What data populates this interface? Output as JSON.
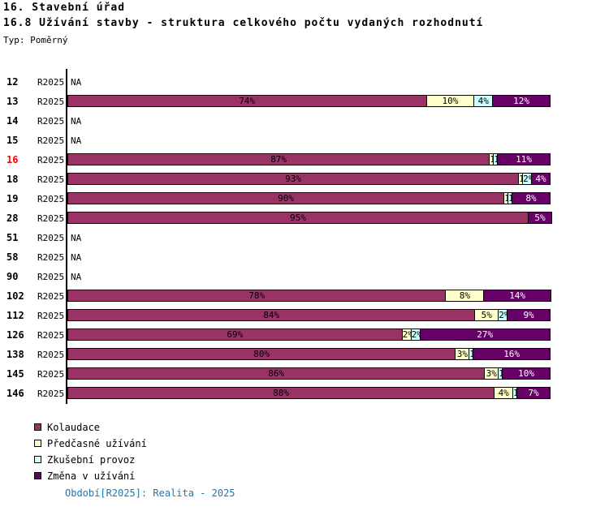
{
  "header": {
    "title1": "16. Stavební úřad",
    "title2": "16.8 Užívání stavby - struktura celkového počtu vydaných rozhodnutí",
    "type_label": "Typ: Poměrný"
  },
  "colors": {
    "background": "#FFFFFF",
    "axis": "#000000",
    "highlight_row_label": "#FF0000",
    "footer_text": "#1878B4"
  },
  "chart_data": {
    "type": "bar",
    "stacked": true,
    "orientation": "horizontal",
    "title": "16.8 Užívání stavby - struktura celkového počtu vydaných rozhodnutí",
    "unit": "%",
    "xlim": [
      0,
      100
    ],
    "na_label": "NA",
    "period_label": "R2025",
    "legend_position": "bottom-left",
    "series": [
      {
        "key": "kolaudace",
        "name": "Kolaudace",
        "color": "#993366",
        "label_color": "#000000"
      },
      {
        "key": "predcasne-uzivani",
        "name": "Předčasné užívání",
        "color": "#FFFFCC",
        "label_color": "#000000"
      },
      {
        "key": "zkusebni-provoz",
        "name": "Zkušební provoz",
        "color": "#CCFFFF",
        "label_color": "#000000"
      },
      {
        "key": "zmena-v-uzivani",
        "name": "Změna v užívání",
        "color": "#660066",
        "label_color": "#FFFFFF"
      }
    ],
    "rows": [
      {
        "id": "12",
        "period": "R2025",
        "na": true,
        "highlight": false,
        "values": null,
        "labels": null
      },
      {
        "id": "13",
        "period": "R2025",
        "na": false,
        "highlight": false,
        "values": [
          74,
          10,
          4,
          12
        ],
        "labels": [
          "74%",
          "10%",
          "4%",
          "12%"
        ]
      },
      {
        "id": "14",
        "period": "R2025",
        "na": true,
        "highlight": false,
        "values": null,
        "labels": null
      },
      {
        "id": "15",
        "period": "R2025",
        "na": true,
        "highlight": false,
        "values": null,
        "labels": null
      },
      {
        "id": "16",
        "period": "R2025",
        "na": false,
        "highlight": true,
        "values": [
          87,
          1,
          1,
          11
        ],
        "labels": [
          "87%",
          "1",
          "1",
          "11%"
        ]
      },
      {
        "id": "18",
        "period": "R2025",
        "na": false,
        "highlight": false,
        "values": [
          93,
          1,
          2,
          4
        ],
        "labels": [
          "93%",
          "1",
          "2%",
          "4%"
        ]
      },
      {
        "id": "19",
        "period": "R2025",
        "na": false,
        "highlight": false,
        "values": [
          90,
          1,
          1,
          8
        ],
        "labels": [
          "90%",
          "1",
          "1",
          "8%"
        ]
      },
      {
        "id": "28",
        "period": "R2025",
        "na": false,
        "highlight": false,
        "values": [
          95,
          0,
          0,
          5
        ],
        "labels": [
          "95%",
          "",
          "",
          "5%"
        ]
      },
      {
        "id": "51",
        "period": "R2025",
        "na": true,
        "highlight": false,
        "values": null,
        "labels": null
      },
      {
        "id": "58",
        "period": "R2025",
        "na": true,
        "highlight": false,
        "values": null,
        "labels": null
      },
      {
        "id": "90",
        "period": "R2025",
        "na": true,
        "highlight": false,
        "values": null,
        "labels": null
      },
      {
        "id": "102",
        "period": "R2025",
        "na": false,
        "highlight": false,
        "values": [
          78,
          8,
          0,
          14
        ],
        "labels": [
          "78%",
          "8%",
          "",
          "14%"
        ]
      },
      {
        "id": "112",
        "period": "R2025",
        "na": false,
        "highlight": false,
        "values": [
          84,
          5,
          2,
          9
        ],
        "labels": [
          "84%",
          "5%",
          "2%",
          "9%"
        ]
      },
      {
        "id": "126",
        "period": "R2025",
        "na": false,
        "highlight": false,
        "values": [
          69,
          2,
          2,
          27
        ],
        "labels": [
          "69%",
          "2%",
          "2%",
          "27%"
        ]
      },
      {
        "id": "138",
        "period": "R2025",
        "na": false,
        "highlight": false,
        "values": [
          80,
          3,
          1,
          16
        ],
        "labels": [
          "80%",
          "3%",
          "1",
          "16%"
        ]
      },
      {
        "id": "145",
        "period": "R2025",
        "na": false,
        "highlight": false,
        "values": [
          86,
          3,
          1,
          10
        ],
        "labels": [
          "86%",
          "3%",
          "1",
          "10%"
        ]
      },
      {
        "id": "146",
        "period": "R2025",
        "na": false,
        "highlight": false,
        "values": [
          88,
          4,
          1,
          7
        ],
        "labels": [
          "88%",
          "4%",
          "1",
          "7%"
        ]
      }
    ]
  },
  "footer": {
    "caption": "Období[R2025]: Realita - 2025"
  }
}
